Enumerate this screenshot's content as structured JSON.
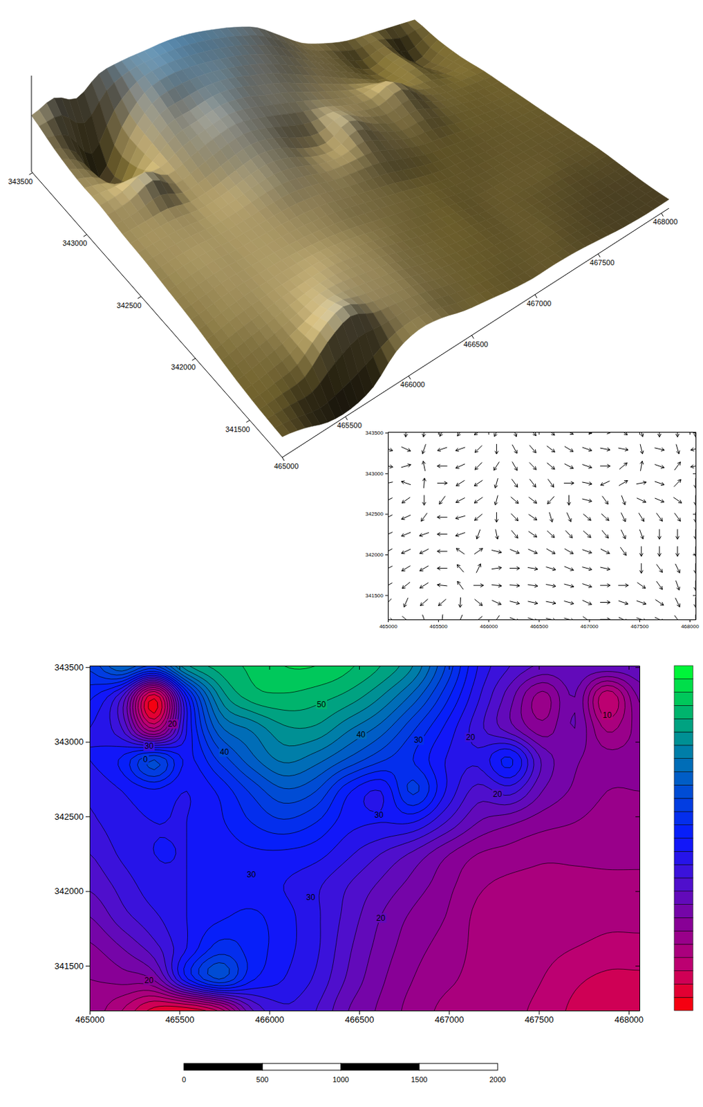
{
  "chart_data": [
    {
      "type": "contour",
      "x": [
        465000,
        465180,
        465360,
        465540,
        465720,
        465900,
        466080,
        466260,
        466440,
        466620,
        466800,
        466980,
        467160,
        467340,
        467520,
        467700,
        467880,
        468060
      ],
      "y": [
        343510,
        343300,
        343090,
        342880,
        342670,
        342460,
        342250,
        342040,
        341830,
        341620,
        341410,
        341200
      ],
      "z": [
        [
          38,
          45,
          40,
          52,
          56,
          58,
          60,
          60,
          58,
          55,
          50,
          40,
          30,
          25,
          22,
          22,
          22,
          22
        ],
        [
          33,
          25,
          3,
          32,
          50,
          56,
          57,
          56,
          54,
          50,
          44,
          36,
          28,
          21,
          14,
          20,
          8,
          18
        ],
        [
          30,
          25,
          10,
          30,
          44,
          48,
          52,
          52,
          48,
          44,
          38,
          32,
          26,
          21,
          16,
          20,
          12,
          16
        ],
        [
          30,
          33,
          40,
          32,
          38,
          44,
          48,
          46,
          42,
          38,
          35,
          30,
          28,
          33,
          22,
          18,
          16,
          16
        ],
        [
          28,
          30,
          32,
          30,
          33,
          38,
          42,
          40,
          33,
          30,
          38,
          30,
          24,
          26,
          20,
          17,
          15,
          15
        ],
        [
          27,
          29,
          30,
          30,
          32,
          35,
          37,
          35,
          31,
          30,
          30,
          25,
          20,
          18,
          16,
          15,
          14,
          14
        ],
        [
          25,
          28,
          30,
          30,
          31,
          32,
          32,
          31,
          28,
          25,
          22,
          18,
          15,
          14,
          13,
          13,
          13,
          13
        ],
        [
          23,
          26,
          29,
          30,
          31,
          31,
          30,
          28,
          25,
          22,
          19,
          16,
          13,
          12,
          12,
          12,
          12,
          12
        ],
        [
          20,
          24,
          27,
          30,
          32,
          33,
          31,
          28,
          24,
          20,
          17,
          15,
          12,
          12,
          12,
          12,
          11,
          11
        ],
        [
          17,
          20,
          24,
          30,
          36,
          34,
          31,
          28,
          23,
          19,
          16,
          14,
          12,
          12,
          11,
          10,
          9,
          9
        ],
        [
          15,
          16,
          18,
          32,
          40,
          33,
          30,
          27,
          22,
          18,
          15,
          13,
          12,
          12,
          10,
          8,
          7,
          7
        ],
        [
          14,
          10,
          4,
          3,
          8,
          22,
          27,
          25,
          20,
          17,
          14,
          12,
          12,
          11,
          9,
          7,
          6,
          6
        ]
      ],
      "xlim": [
        465000,
        468060
      ],
      "ylim": [
        341200,
        343510
      ],
      "xticks": [
        465000,
        465500,
        466000,
        466500,
        467000,
        467500,
        468000
      ],
      "yticks": [
        341500,
        342000,
        342500,
        343000,
        343500
      ],
      "levels": [
        0,
        2.5,
        5,
        7.5,
        10,
        12.5,
        15,
        17.5,
        20,
        22.5,
        25,
        27.5,
        30,
        32.5,
        35,
        37.5,
        40,
        42.5,
        45,
        47.5,
        50,
        52.5,
        55,
        57.5,
        60,
        62.5
      ],
      "colorbar": {
        "range": [
          0,
          65
        ],
        "colors": [
          "#ff0000",
          "#c0006e",
          "#880096",
          "#4a10d0",
          "#0818ff",
          "#0048d8",
          "#007ea8",
          "#00b868",
          "#00ff30"
        ]
      },
      "annotations": [
        {
          "text": "50",
          "x": 466290,
          "y": 343250
        },
        {
          "text": "40",
          "x": 466510,
          "y": 343050
        },
        {
          "text": "30",
          "x": 466830,
          "y": 343010
        },
        {
          "text": "20",
          "x": 467120,
          "y": 343030
        },
        {
          "text": "10",
          "x": 467880,
          "y": 343180
        },
        {
          "text": "20",
          "x": 465460,
          "y": 343120
        },
        {
          "text": "30",
          "x": 465330,
          "y": 342970
        },
        {
          "text": "0",
          "x": 465310,
          "y": 342880
        },
        {
          "text": "40",
          "x": 465750,
          "y": 342930
        },
        {
          "text": "30",
          "x": 466610,
          "y": 342510
        },
        {
          "text": "20",
          "x": 467270,
          "y": 342650
        },
        {
          "text": "30",
          "x": 465900,
          "y": 342110
        },
        {
          "text": "30",
          "x": 466230,
          "y": 341960
        },
        {
          "text": "20",
          "x": 466620,
          "y": 341820
        },
        {
          "text": "20",
          "x": 465330,
          "y": 341400
        }
      ],
      "scale_bar": {
        "ticks": [
          0,
          500,
          1000,
          1500,
          2000
        ]
      }
    },
    {
      "type": "vector",
      "xlim": [
        465000,
        468060
      ],
      "ylim": [
        341200,
        343510
      ],
      "xticks": [
        465000,
        465500,
        466000,
        466500,
        467000,
        467500,
        468000
      ],
      "yticks": [
        341500,
        342000,
        342500,
        343000,
        343500
      ]
    },
    {
      "type": "surface",
      "xlim": [
        465000,
        468060
      ],
      "ylim": [
        341200,
        343510
      ],
      "xticks": [
        465000,
        465500,
        466000,
        466500,
        467000,
        467500,
        468000
      ],
      "yticks": [
        341500,
        342000,
        342500,
        343000,
        343500
      ]
    }
  ]
}
